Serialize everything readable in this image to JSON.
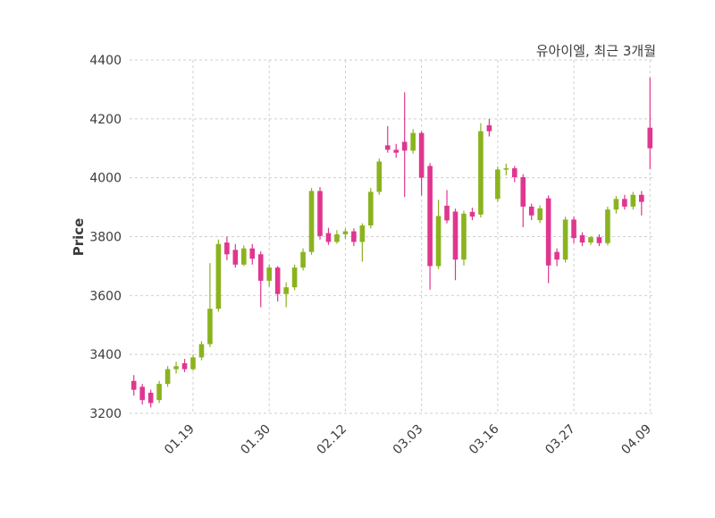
{
  "chart_data": {
    "type": "candlestick",
    "title": "유아이엘, 최근 3개월",
    "ylabel": "Price",
    "ylim": [
      3200,
      4400
    ],
    "y_ticks": [
      3200,
      3400,
      3600,
      3800,
      4000,
      4200,
      4400
    ],
    "x_ticks": [
      {
        "index": 7,
        "label": "01.19"
      },
      {
        "index": 16,
        "label": "01.30"
      },
      {
        "index": 25,
        "label": "02.12"
      },
      {
        "index": 34,
        "label": "03.03"
      },
      {
        "index": 43,
        "label": "03.16"
      },
      {
        "index": 52,
        "label": "03.27"
      },
      {
        "index": 61,
        "label": "04.09"
      }
    ],
    "colors": {
      "up": "#8ab31f",
      "down": "#e0368f",
      "grid": "#cfcfcf",
      "text": "#3c3c3c",
      "background": "#ffffff"
    },
    "grid": "dashed",
    "legend": "none",
    "candles_format": [
      "open",
      "high",
      "low",
      "close"
    ],
    "candles": [
      [
        3310,
        3330,
        3260,
        3280
      ],
      [
        3290,
        3300,
        3230,
        3245
      ],
      [
        3270,
        3280,
        3220,
        3235
      ],
      [
        3245,
        3310,
        3235,
        3300
      ],
      [
        3300,
        3360,
        3290,
        3350
      ],
      [
        3350,
        3375,
        3335,
        3360
      ],
      [
        3370,
        3385,
        3340,
        3350
      ],
      [
        3350,
        3400,
        3345,
        3390
      ],
      [
        3390,
        3445,
        3380,
        3435
      ],
      [
        3435,
        3710,
        3425,
        3555
      ],
      [
        3555,
        3790,
        3545,
        3775
      ],
      [
        3780,
        3800,
        3720,
        3740
      ],
      [
        3755,
        3775,
        3695,
        3705
      ],
      [
        3705,
        3770,
        3700,
        3760
      ],
      [
        3760,
        3775,
        3705,
        3725
      ],
      [
        3740,
        3750,
        3560,
        3650
      ],
      [
        3650,
        3705,
        3630,
        3695
      ],
      [
        3695,
        3700,
        3580,
        3605
      ],
      [
        3605,
        3645,
        3560,
        3628
      ],
      [
        3628,
        3705,
        3618,
        3695
      ],
      [
        3695,
        3760,
        3685,
        3748
      ],
      [
        3748,
        3965,
        3738,
        3955
      ],
      [
        3955,
        3968,
        3790,
        3802
      ],
      [
        3812,
        3830,
        3772,
        3782
      ],
      [
        3782,
        3822,
        3776,
        3808
      ],
      [
        3808,
        3828,
        3792,
        3818
      ],
      [
        3818,
        3828,
        3768,
        3782
      ],
      [
        3782,
        3845,
        3715,
        3838
      ],
      [
        3838,
        3965,
        3828,
        3952
      ],
      [
        3952,
        4065,
        3942,
        4055
      ],
      [
        4110,
        4175,
        4085,
        4095
      ],
      [
        4095,
        4115,
        4068,
        4085
      ],
      [
        4122,
        4290,
        3935,
        4092
      ],
      [
        4092,
        4165,
        4082,
        4152
      ],
      [
        4152,
        4158,
        3940,
        4000
      ],
      [
        4040,
        4050,
        3620,
        3700
      ],
      [
        3700,
        3925,
        3690,
        3870
      ],
      [
        3905,
        3958,
        3845,
        3855
      ],
      [
        3885,
        3895,
        3652,
        3722
      ],
      [
        3722,
        3888,
        3702,
        3878
      ],
      [
        3884,
        3898,
        3856,
        3868
      ],
      [
        3875,
        4185,
        3865,
        4158
      ],
      [
        4178,
        4200,
        4140,
        4158
      ],
      [
        3928,
        4038,
        3918,
        4028
      ],
      [
        4028,
        4048,
        4008,
        4032
      ],
      [
        4032,
        4040,
        3985,
        4002
      ],
      [
        4002,
        4012,
        3832,
        3902
      ],
      [
        3902,
        3912,
        3856,
        3872
      ],
      [
        3856,
        3906,
        3846,
        3896
      ],
      [
        3930,
        3940,
        3642,
        3702
      ],
      [
        3748,
        3760,
        3700,
        3722
      ],
      [
        3722,
        3868,
        3712,
        3858
      ],
      [
        3858,
        3868,
        3778,
        3795
      ],
      [
        3805,
        3815,
        3768,
        3780
      ],
      [
        3780,
        3802,
        3772,
        3798
      ],
      [
        3798,
        3808,
        3768,
        3778
      ],
      [
        3778,
        3902,
        3770,
        3892
      ],
      [
        3892,
        3938,
        3878,
        3928
      ],
      [
        3928,
        3942,
        3892,
        3902
      ],
      [
        3902,
        3952,
        3892,
        3942
      ],
      [
        3942,
        3955,
        3872,
        3918
      ],
      [
        4170,
        4340,
        4030,
        4100
      ]
    ]
  }
}
